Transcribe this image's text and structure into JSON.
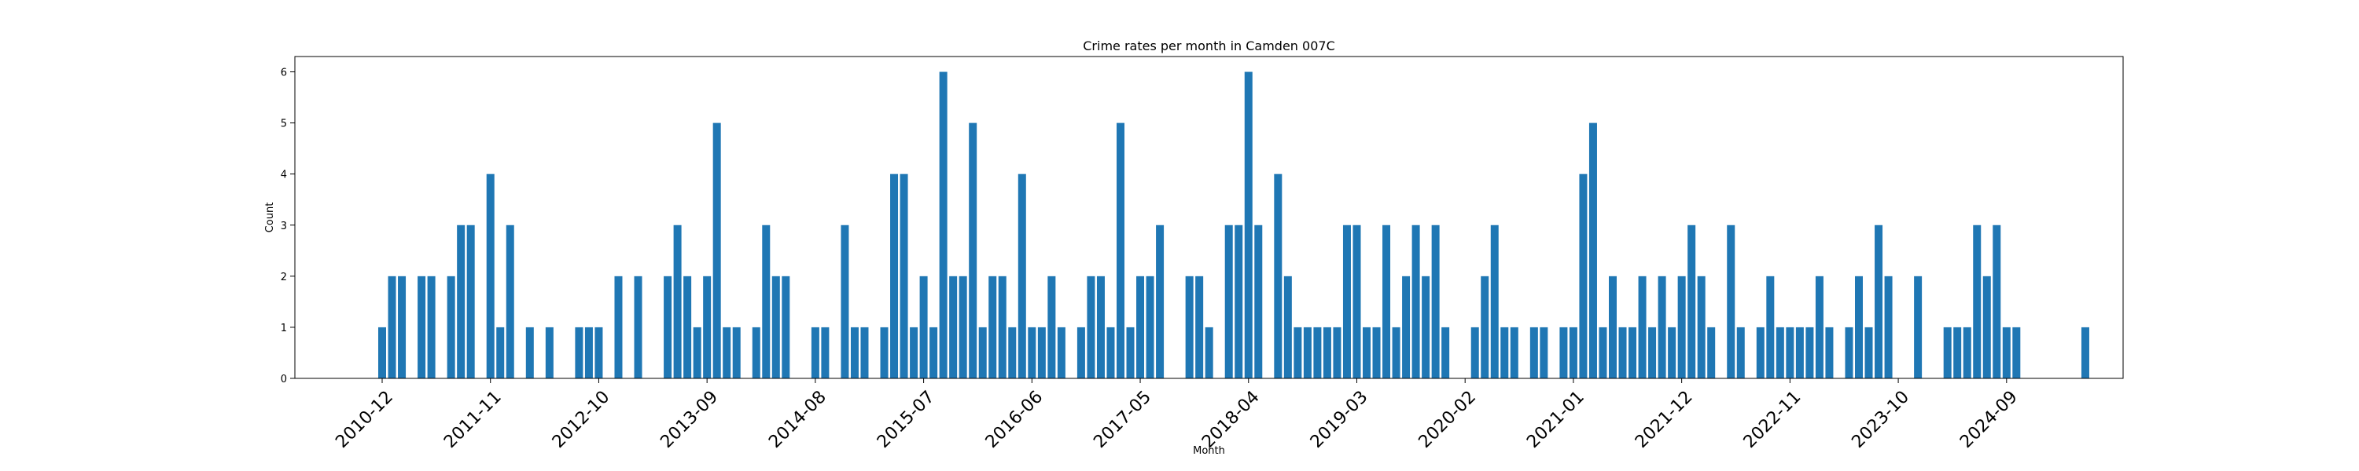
{
  "chart_data": {
    "type": "bar",
    "title": "Crime rates per month in Camden 007C",
    "xlabel": "Month",
    "ylabel": "Count",
    "ylim": [
      0,
      6.3
    ],
    "yticks": [
      0,
      1,
      2,
      3,
      4,
      5,
      6
    ],
    "xtick_labels": [
      "2010-12",
      "2011-11",
      "2012-10",
      "2013-09",
      "2014-08",
      "2015-07",
      "2016-06",
      "2017-05",
      "2018-04",
      "2019-03",
      "2020-02",
      "2021-01",
      "2021-12",
      "2022-11",
      "2023-10",
      "2024-09"
    ],
    "color": "#1f77b4",
    "grid": false,
    "categories": [
      "2010-12",
      "2011-01",
      "2011-02",
      "2011-03",
      "2011-04",
      "2011-05",
      "2011-06",
      "2011-07",
      "2011-08",
      "2011-09",
      "2011-10",
      "2011-11",
      "2011-12",
      "2012-01",
      "2012-02",
      "2012-03",
      "2012-04",
      "2012-05",
      "2012-06",
      "2012-07",
      "2012-08",
      "2012-09",
      "2012-10",
      "2012-11",
      "2012-12",
      "2013-01",
      "2013-02",
      "2013-03",
      "2013-04",
      "2013-05",
      "2013-06",
      "2013-07",
      "2013-08",
      "2013-09",
      "2013-10",
      "2013-11",
      "2013-12",
      "2014-01",
      "2014-02",
      "2014-03",
      "2014-04",
      "2014-05",
      "2014-06",
      "2014-07",
      "2014-08",
      "2014-09",
      "2014-10",
      "2014-11",
      "2014-12",
      "2015-01",
      "2015-02",
      "2015-03",
      "2015-04",
      "2015-05",
      "2015-06",
      "2015-07",
      "2015-08",
      "2015-09",
      "2015-10",
      "2015-11",
      "2015-12",
      "2016-01",
      "2016-02",
      "2016-03",
      "2016-04",
      "2016-05",
      "2016-06",
      "2016-07",
      "2016-08",
      "2016-09",
      "2016-10",
      "2016-11",
      "2016-12",
      "2017-01",
      "2017-02",
      "2017-03",
      "2017-04",
      "2017-05",
      "2017-06",
      "2017-07",
      "2017-08",
      "2017-09",
      "2017-10",
      "2017-11",
      "2017-12",
      "2018-01",
      "2018-02",
      "2018-03",
      "2018-04",
      "2018-05",
      "2018-06",
      "2018-07",
      "2018-08",
      "2018-09",
      "2018-10",
      "2018-11",
      "2018-12",
      "2019-01",
      "2019-02",
      "2019-03",
      "2019-04",
      "2019-05",
      "2019-06",
      "2019-07",
      "2019-08",
      "2019-09",
      "2019-10",
      "2019-11",
      "2019-12",
      "2020-01",
      "2020-02",
      "2020-03",
      "2020-04",
      "2020-05",
      "2020-06",
      "2020-07",
      "2020-08",
      "2020-09",
      "2020-10",
      "2020-11",
      "2020-12",
      "2021-01",
      "2021-02",
      "2021-03",
      "2021-04",
      "2021-05",
      "2021-06",
      "2021-07",
      "2021-08",
      "2021-09",
      "2021-10",
      "2021-11",
      "2021-12",
      "2022-01",
      "2022-02",
      "2022-03",
      "2022-04",
      "2022-05",
      "2022-06",
      "2022-07",
      "2022-08",
      "2022-09",
      "2022-10",
      "2022-11",
      "2022-12",
      "2023-01",
      "2023-02",
      "2023-03",
      "2023-04",
      "2023-05",
      "2023-06",
      "2023-07",
      "2023-08",
      "2023-09",
      "2023-10",
      "2023-11",
      "2023-12",
      "2024-01",
      "2024-02",
      "2024-03",
      "2024-04",
      "2024-05",
      "2024-06",
      "2024-07",
      "2024-08",
      "2024-09",
      "2024-10",
      "2024-11",
      "2024-12",
      "2025-01",
      "2025-02",
      "2025-03",
      "2025-04",
      "2025-05",
      "2025-06"
    ],
    "values": [
      1,
      2,
      2,
      0,
      2,
      2,
      0,
      2,
      3,
      3,
      0,
      4,
      1,
      3,
      0,
      1,
      0,
      1,
      0,
      0,
      1,
      1,
      1,
      0,
      2,
      0,
      2,
      0,
      0,
      2,
      3,
      2,
      1,
      2,
      5,
      1,
      1,
      0,
      1,
      3,
      2,
      2,
      0,
      0,
      1,
      1,
      0,
      3,
      1,
      1,
      0,
      1,
      4,
      4,
      1,
      2,
      1,
      6,
      2,
      2,
      5,
      1,
      2,
      2,
      1,
      4,
      1,
      1,
      2,
      1,
      0,
      1,
      2,
      2,
      1,
      5,
      1,
      2,
      2,
      3,
      0,
      0,
      2,
      2,
      1,
      0,
      3,
      3,
      6,
      3,
      0,
      4,
      2,
      1,
      1,
      1,
      1,
      1,
      3,
      3,
      1,
      1,
      3,
      1,
      2,
      3,
      2,
      3,
      1,
      0,
      0,
      1,
      2,
      3,
      1,
      1,
      0,
      1,
      1,
      0,
      1,
      1,
      4,
      5,
      1,
      2,
      1,
      1,
      2,
      1,
      2,
      1,
      2,
      3,
      2,
      1,
      0,
      3,
      1,
      0,
      1,
      2,
      1,
      1,
      1,
      1,
      2,
      1,
      0,
      1,
      2,
      1,
      3,
      2,
      0,
      0,
      2,
      0,
      0,
      1,
      1,
      1,
      3,
      2,
      3,
      1,
      1,
      0,
      0,
      0,
      0,
      0,
      0,
      1,
      0
    ]
  }
}
